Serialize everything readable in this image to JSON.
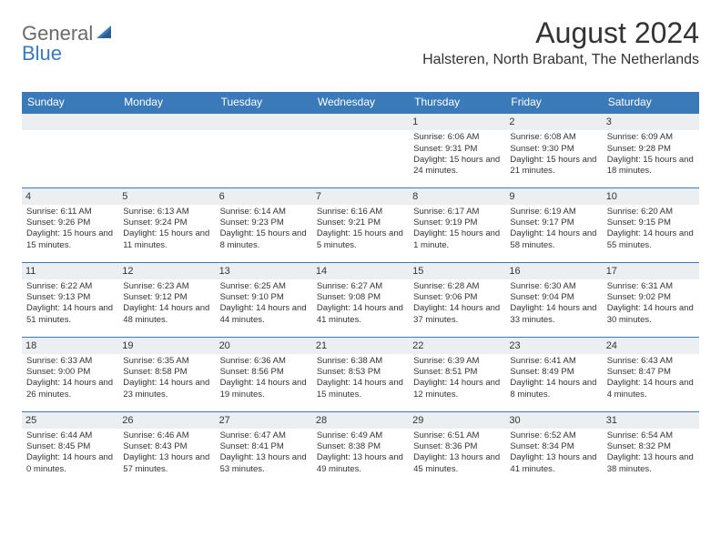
{
  "logo": {
    "text1": "General",
    "text2": "Blue"
  },
  "title": "August 2024",
  "location": "Halsteren, North Brabant, The Netherlands",
  "colors": {
    "header_bg": "#3a7ab8",
    "header_text": "#ffffff",
    "daynum_bg": "#eceff1",
    "text": "#333333",
    "border": "#3a7ab8",
    "logo_gray": "#6a6a6a",
    "logo_blue": "#3a7ab8"
  },
  "weekdays": [
    "Sunday",
    "Monday",
    "Tuesday",
    "Wednesday",
    "Thursday",
    "Friday",
    "Saturday"
  ],
  "weeks": [
    [
      null,
      null,
      null,
      null,
      {
        "n": "1",
        "sr": "6:06 AM",
        "ss": "9:31 PM",
        "dl": "15 hours and 24 minutes."
      },
      {
        "n": "2",
        "sr": "6:08 AM",
        "ss": "9:30 PM",
        "dl": "15 hours and 21 minutes."
      },
      {
        "n": "3",
        "sr": "6:09 AM",
        "ss": "9:28 PM",
        "dl": "15 hours and 18 minutes."
      }
    ],
    [
      {
        "n": "4",
        "sr": "6:11 AM",
        "ss": "9:26 PM",
        "dl": "15 hours and 15 minutes."
      },
      {
        "n": "5",
        "sr": "6:13 AM",
        "ss": "9:24 PM",
        "dl": "15 hours and 11 minutes."
      },
      {
        "n": "6",
        "sr": "6:14 AM",
        "ss": "9:23 PM",
        "dl": "15 hours and 8 minutes."
      },
      {
        "n": "7",
        "sr": "6:16 AM",
        "ss": "9:21 PM",
        "dl": "15 hours and 5 minutes."
      },
      {
        "n": "8",
        "sr": "6:17 AM",
        "ss": "9:19 PM",
        "dl": "15 hours and 1 minute."
      },
      {
        "n": "9",
        "sr": "6:19 AM",
        "ss": "9:17 PM",
        "dl": "14 hours and 58 minutes."
      },
      {
        "n": "10",
        "sr": "6:20 AM",
        "ss": "9:15 PM",
        "dl": "14 hours and 55 minutes."
      }
    ],
    [
      {
        "n": "11",
        "sr": "6:22 AM",
        "ss": "9:13 PM",
        "dl": "14 hours and 51 minutes."
      },
      {
        "n": "12",
        "sr": "6:23 AM",
        "ss": "9:12 PM",
        "dl": "14 hours and 48 minutes."
      },
      {
        "n": "13",
        "sr": "6:25 AM",
        "ss": "9:10 PM",
        "dl": "14 hours and 44 minutes."
      },
      {
        "n": "14",
        "sr": "6:27 AM",
        "ss": "9:08 PM",
        "dl": "14 hours and 41 minutes."
      },
      {
        "n": "15",
        "sr": "6:28 AM",
        "ss": "9:06 PM",
        "dl": "14 hours and 37 minutes."
      },
      {
        "n": "16",
        "sr": "6:30 AM",
        "ss": "9:04 PM",
        "dl": "14 hours and 33 minutes."
      },
      {
        "n": "17",
        "sr": "6:31 AM",
        "ss": "9:02 PM",
        "dl": "14 hours and 30 minutes."
      }
    ],
    [
      {
        "n": "18",
        "sr": "6:33 AM",
        "ss": "9:00 PM",
        "dl": "14 hours and 26 minutes."
      },
      {
        "n": "19",
        "sr": "6:35 AM",
        "ss": "8:58 PM",
        "dl": "14 hours and 23 minutes."
      },
      {
        "n": "20",
        "sr": "6:36 AM",
        "ss": "8:56 PM",
        "dl": "14 hours and 19 minutes."
      },
      {
        "n": "21",
        "sr": "6:38 AM",
        "ss": "8:53 PM",
        "dl": "14 hours and 15 minutes."
      },
      {
        "n": "22",
        "sr": "6:39 AM",
        "ss": "8:51 PM",
        "dl": "14 hours and 12 minutes."
      },
      {
        "n": "23",
        "sr": "6:41 AM",
        "ss": "8:49 PM",
        "dl": "14 hours and 8 minutes."
      },
      {
        "n": "24",
        "sr": "6:43 AM",
        "ss": "8:47 PM",
        "dl": "14 hours and 4 minutes."
      }
    ],
    [
      {
        "n": "25",
        "sr": "6:44 AM",
        "ss": "8:45 PM",
        "dl": "14 hours and 0 minutes."
      },
      {
        "n": "26",
        "sr": "6:46 AM",
        "ss": "8:43 PM",
        "dl": "13 hours and 57 minutes."
      },
      {
        "n": "27",
        "sr": "6:47 AM",
        "ss": "8:41 PM",
        "dl": "13 hours and 53 minutes."
      },
      {
        "n": "28",
        "sr": "6:49 AM",
        "ss": "8:38 PM",
        "dl": "13 hours and 49 minutes."
      },
      {
        "n": "29",
        "sr": "6:51 AM",
        "ss": "8:36 PM",
        "dl": "13 hours and 45 minutes."
      },
      {
        "n": "30",
        "sr": "6:52 AM",
        "ss": "8:34 PM",
        "dl": "13 hours and 41 minutes."
      },
      {
        "n": "31",
        "sr": "6:54 AM",
        "ss": "8:32 PM",
        "dl": "13 hours and 38 minutes."
      }
    ]
  ],
  "labels": {
    "sunrise": "Sunrise:",
    "sunset": "Sunset:",
    "daylight": "Daylight:"
  }
}
